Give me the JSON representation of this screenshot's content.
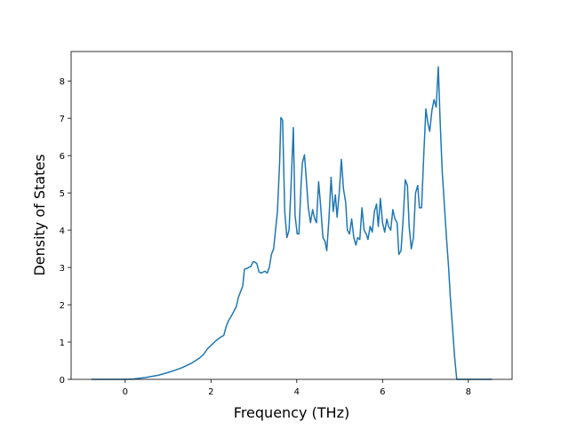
{
  "chart_data": {
    "type": "line",
    "xlabel": "Frequency (THz)",
    "ylabel": "Density of States",
    "xlim": [
      -1.26,
      9.02
    ],
    "ylim": [
      0,
      8.79
    ],
    "xticks": [
      0,
      2,
      4,
      6,
      8
    ],
    "yticks": [
      0,
      1,
      2,
      3,
      4,
      5,
      6,
      7,
      8
    ],
    "grid": false,
    "series": [
      {
        "color": "#1f77b4",
        "x": [
          -0.79,
          0,
          0.19,
          0.48,
          0.77,
          0.96,
          1.15,
          1.34,
          1.54,
          1.73,
          1.82,
          1.92,
          2.02,
          2.11,
          2.21,
          2.3,
          2.35,
          2.4,
          2.5,
          2.59,
          2.64,
          2.74,
          2.78,
          2.88,
          2.93,
          2.98,
          3.02,
          3.07,
          3.12,
          3.17,
          3.26,
          3.31,
          3.36,
          3.41,
          3.46,
          3.55,
          3.6,
          3.63,
          3.67,
          3.72,
          3.77,
          3.82,
          3.86,
          3.92,
          3.96,
          4.01,
          4.05,
          4.1,
          4.13,
          4.18,
          4.22,
          4.27,
          4.32,
          4.37,
          4.42,
          4.46,
          4.51,
          4.56,
          4.61,
          4.66,
          4.7,
          4.75,
          4.8,
          4.85,
          4.9,
          4.94,
          4.99,
          5.04,
          5.09,
          5.14,
          5.18,
          5.23,
          5.28,
          5.33,
          5.38,
          5.42,
          5.47,
          5.52,
          5.57,
          5.62,
          5.66,
          5.71,
          5.76,
          5.81,
          5.86,
          5.9,
          5.95,
          6.0,
          6.05,
          6.1,
          6.14,
          6.19,
          6.24,
          6.29,
          6.34,
          6.38,
          6.43,
          6.48,
          6.53,
          6.58,
          6.62,
          6.67,
          6.72,
          6.77,
          6.82,
          6.86,
          6.91,
          6.96,
          7.01,
          7.06,
          7.1,
          7.15,
          7.2,
          7.25,
          7.3,
          7.34,
          7.39,
          7.49,
          7.54,
          7.58,
          7.63,
          7.68,
          7.73,
          8.55
        ],
        "values": [
          0,
          0,
          0.01,
          0.05,
          0.11,
          0.17,
          0.24,
          0.32,
          0.43,
          0.57,
          0.66,
          0.82,
          0.93,
          1.03,
          1.12,
          1.18,
          1.4,
          1.55,
          1.75,
          1.95,
          2.2,
          2.5,
          2.95,
          3.0,
          3.03,
          3.15,
          3.15,
          3.1,
          2.88,
          2.85,
          2.9,
          2.85,
          3.0,
          3.35,
          3.5,
          4.5,
          5.8,
          7.02,
          6.95,
          4.5,
          3.8,
          4.0,
          5.0,
          6.75,
          4.4,
          3.9,
          3.9,
          5.2,
          5.8,
          6.02,
          5.4,
          4.6,
          4.2,
          4.55,
          4.3,
          4.2,
          5.3,
          4.6,
          3.8,
          3.7,
          3.45,
          4.3,
          5.42,
          4.5,
          4.95,
          4.35,
          5.0,
          5.9,
          5.1,
          4.75,
          4.0,
          3.9,
          4.3,
          3.8,
          3.6,
          3.8,
          3.75,
          4.6,
          4.0,
          3.9,
          3.75,
          4.1,
          3.95,
          4.5,
          4.7,
          4.1,
          4.85,
          4.2,
          3.95,
          4.3,
          4.1,
          4.0,
          4.55,
          4.3,
          4.2,
          3.35,
          3.45,
          4.3,
          5.35,
          5.2,
          4.1,
          3.5,
          3.8,
          5.0,
          5.2,
          4.6,
          4.6,
          6.0,
          7.25,
          6.85,
          6.65,
          7.2,
          7.5,
          7.3,
          8.38,
          7.0,
          5.6,
          3.8,
          3.0,
          2.2,
          1.4,
          0.6,
          0,
          0
        ]
      }
    ]
  }
}
